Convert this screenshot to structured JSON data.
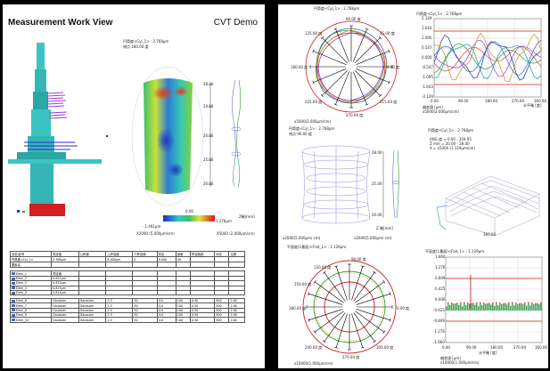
{
  "left_page": {
    "title": "Measurement Work View",
    "subtitle": "CVT Demo",
    "surface_info": [
      "円筒度<Cyl_1> : 2.768μm",
      "視点 180.00 度"
    ],
    "scale_labels": [
      "-1.491μm",
      "1.278μm",
      "X2000 (5.000μm/cm)",
      "X5000 (2.000μm/cm)",
      "0.06"
    ],
    "profile_ticks": [
      "28.00",
      "24.00",
      "20.00",
      "25.00",
      "20.00"
    ],
    "profile_unit": "Z軸[mm]"
  },
  "table": {
    "header": [
      "名前/記号",
      "測定値",
      "公称値",
      "上許容値",
      "下許容値",
      "判定",
      "誤差",
      "許容超過",
      "判定",
      "位置"
    ],
    "section1": [
      [
        "円筒度<Cyl_1>",
        "2.768μm",
        "",
        "8.000μm",
        "0",
        "0.000",
        "OK",
        "",
        "",
        ""
      ],
      [
        "要素名",
        "",
        "",
        "",
        "",
        "",
        "",
        "",
        "",
        ""
      ]
    ],
    "section2": [
      [
        "Elem_1",
        "測定値",
        "",
        "",
        "",
        "",
        "",
        "",
        "",
        ""
      ],
      [
        "Elem_2",
        "0.811μm",
        "",
        "",
        "",
        "",
        "",
        "",
        "",
        ""
      ],
      [
        "Elem_3",
        "0.812μm",
        "",
        "",
        "",
        "",
        "",
        "",
        "",
        ""
      ],
      [
        "Elem_4",
        "0.813μm",
        "",
        "",
        "",
        "",
        "",
        "",
        "",
        ""
      ],
      [
        "Elem_5",
        "0.814μm",
        "",
        "",
        "",
        "",
        "",
        "",
        "",
        ""
      ]
    ],
    "section3": [
      [
        "Elem_6",
        "Gaussian",
        "Gaussian",
        "2.5",
        "50",
        "4.0",
        "100",
        "0.50",
        "500",
        "2.00"
      ],
      [
        "Elem_7",
        "Gaussian",
        "Gaussian",
        "2.5",
        "50",
        "4.0",
        "100",
        "0.50",
        "500",
        "2.00"
      ],
      [
        "Elem_8",
        "Gaussian",
        "Gaussian",
        "2.5",
        "50",
        "4.0",
        "100",
        "0.50",
        "500",
        "2.00"
      ],
      [
        "Elem_9",
        "Gaussian",
        "Gaussian",
        "2.5",
        "50",
        "4.0",
        "100",
        "0.50",
        "500",
        "2.00"
      ],
      [
        "Elem_10",
        "Gaussian",
        "Gaussian",
        "2.5",
        "50",
        "4.0",
        "100",
        "0.50",
        "500",
        "2.00"
      ]
    ]
  },
  "right_page": {
    "polar1": {
      "title": "円筒度<Cyl_1> : 2.768μm",
      "angles": [
        "90.00 度",
        "45.00 度",
        "0.00 度",
        "315.00 度",
        "270.00 度",
        "225.00 度",
        "180.00 度",
        "135.00 度"
      ],
      "scale": "x5000(2.000μm/cm)"
    },
    "line_chart": {
      "title": "円筒度<Cyl_1> : 2.768μm",
      "yticks": [
        "2.129",
        "1.643",
        "1.095",
        "0.547",
        "0.000",
        "-0.547",
        "-1.095",
        "-1.643",
        "-2.129"
      ],
      "xticks": [
        "0.00",
        "90.00",
        "180.00",
        "270.00",
        "360.00"
      ],
      "xlabel": "水平軸 [度]",
      "ylabel": "偏差値 [μm]",
      "scale": "x5000(2.000μm/cm)",
      "colors": [
        "#e0483a",
        "#2e9b3a",
        "#2b5ec9",
        "#9d3ad6",
        "#18a0a0",
        "#1f2fa0",
        "#d68a19"
      ]
    },
    "cyl2d": {
      "title": "円筒度<Cyl_1> : 2.768μm",
      "subtitle": "視点 90.00 度",
      "ticks": [
        "28.00",
        "25.00",
        "20.00"
      ],
      "scale_left": "x2000(5.000μm/ cm)",
      "scale_right": "x2000(5.000μm/ cm)",
      "axis_label": "Z 軸[mm]"
    },
    "iso3d": {
      "title": "円筒度<Cyl_1> : 2.768μm",
      "info": [
        "ANG 度 = 0.00 - 359.95",
        "Z mm = 20.00 - 28.00",
        "X = x5000 (1.119μm/cm)"
      ],
      "label": "360.00"
    },
    "polar2": {
      "title": "平面度(1番面)<Flat_1> : 1.129μm",
      "angles": [
        "90.00 度",
        "0.00 度",
        "300.00 度",
        "270.00 度",
        "240.00 度",
        "180.00 度",
        "150.00 度",
        "120.00 度"
      ],
      "scale": "x10000(1.000μm/cm)"
    },
    "bar_chart": {
      "title": "平面度(1番面)<Flat_1> : 1.129μm",
      "yticks": [
        "1.660",
        "1.276",
        "0.849",
        "0.425",
        "0.000",
        "-0.425",
        "-0.849",
        "-1.276",
        "-1.660"
      ],
      "xticks": [
        "0.00",
        "90.00",
        "180.00",
        "270.00",
        "360.00"
      ],
      "xlabel": "水平軸 [度]",
      "ylabel": "偏差値 [μm]",
      "scale": "x10000(1.000μm/cm)"
    }
  }
}
